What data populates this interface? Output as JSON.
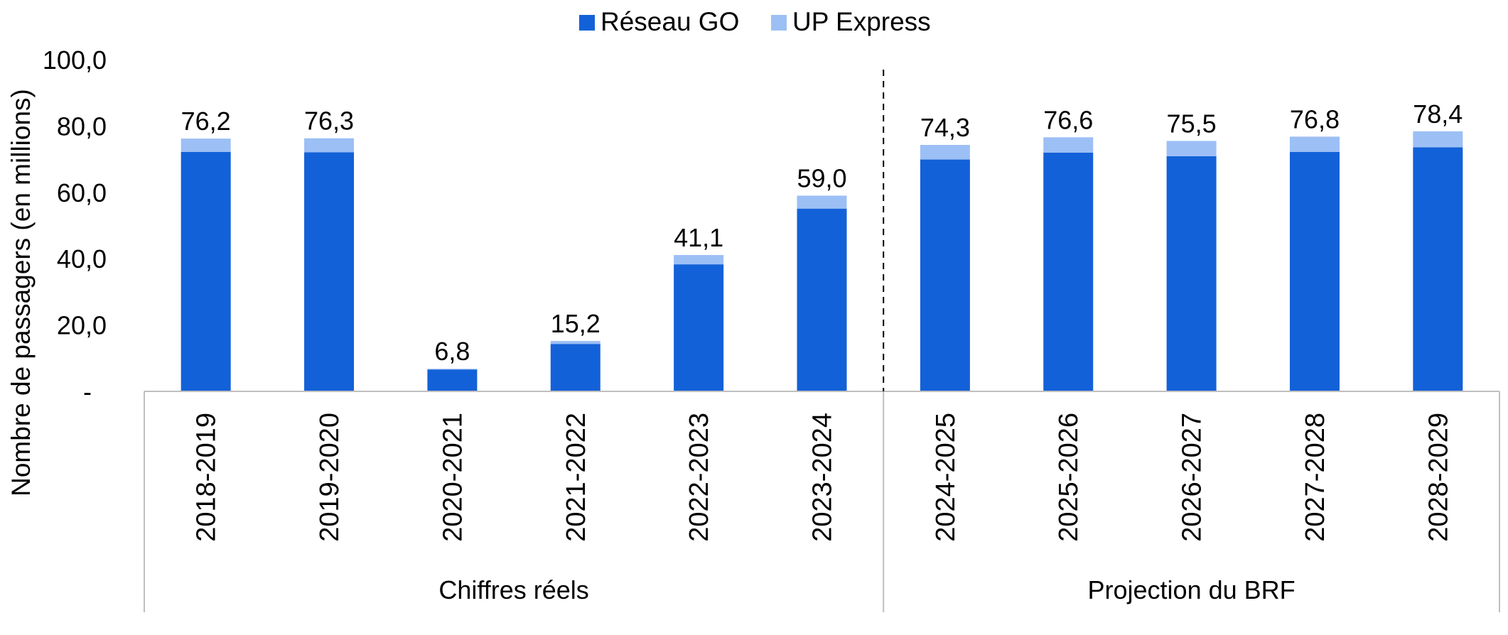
{
  "chart_data": {
    "type": "bar",
    "stacked": true,
    "ylabel": "Nombre de passagers (en millions)",
    "ylim": [
      0,
      100
    ],
    "yticks": [
      0,
      20,
      40,
      60,
      80,
      100
    ],
    "ytick_labels": [
      "-",
      "20,0",
      "40,0",
      "60,0",
      "80,0",
      "100,0"
    ],
    "grid": false,
    "legend_position": "top-center",
    "categories": [
      "2018-2019",
      "2019-2020",
      "2020-2021",
      "2021-2022",
      "2022-2023",
      "2023-2024",
      "2024-2025",
      "2025-2026",
      "2026-2027",
      "2027-2028",
      "2028-2029"
    ],
    "groups": [
      {
        "label": "Chiffres réels",
        "categories": [
          "2018-2019",
          "2019-2020",
          "2020-2021",
          "2021-2022",
          "2022-2023",
          "2023-2024"
        ]
      },
      {
        "label": "Projection du BRF",
        "categories": [
          "2024-2025",
          "2025-2026",
          "2026-2027",
          "2027-2028",
          "2028-2029"
        ]
      }
    ],
    "series": [
      {
        "name": "Réseau GO",
        "color": "#1361d8",
        "values": [
          72.2,
          72.1,
          6.6,
          14.3,
          38.3,
          55.1,
          69.9,
          72.0,
          70.9,
          72.2,
          73.6
        ]
      },
      {
        "name": "UP Express",
        "color": "#9cbff5",
        "values": [
          4.0,
          4.2,
          0.2,
          0.9,
          2.8,
          3.9,
          4.4,
          4.6,
          4.6,
          4.6,
          4.8
        ]
      }
    ],
    "totals": [
      76.2,
      76.3,
      6.8,
      15.2,
      41.1,
      59.0,
      74.3,
      76.6,
      75.5,
      76.8,
      78.4
    ],
    "total_labels": [
      "76,2",
      "76,3",
      "6,8",
      "15,2",
      "41,1",
      "59,0",
      "74,3",
      "76,6",
      "75,5",
      "76,8",
      "78,4"
    ]
  }
}
